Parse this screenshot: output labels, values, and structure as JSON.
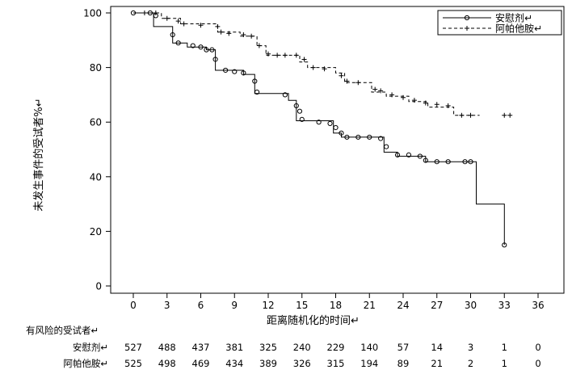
{
  "chart_data": {
    "type": "line",
    "xlabel": "距离随机化的时间↵",
    "ylabel": "未发生事件的受试者%↵",
    "xlim": [
      -2.4,
      39.2
    ],
    "ylim": [
      -0.5,
      100
    ],
    "x_ticks": [
      0,
      3,
      6,
      9,
      12,
      15,
      18,
      21,
      24,
      27,
      30,
      33,
      36
    ],
    "y_ticks": [
      0,
      20,
      40,
      60,
      80,
      100
    ],
    "grid": false,
    "legend_position": "top-right",
    "series": [
      {
        "name": "安慰剂↵",
        "line_style": "solid",
        "marker": "circle",
        "color": "#000000",
        "steps": [
          [
            0,
            100
          ],
          [
            1.8,
            100
          ],
          [
            1.8,
            95
          ],
          [
            3.5,
            95
          ],
          [
            3.5,
            89
          ],
          [
            4.8,
            89
          ],
          [
            4.8,
            87.5
          ],
          [
            6.5,
            87.5
          ],
          [
            6.5,
            86.5
          ],
          [
            7.3,
            86.5
          ],
          [
            7.3,
            79
          ],
          [
            9.8,
            79
          ],
          [
            9.8,
            77.5
          ],
          [
            10.8,
            77.5
          ],
          [
            10.8,
            70.5
          ],
          [
            13.8,
            70.5
          ],
          [
            13.8,
            68
          ],
          [
            14.5,
            68
          ],
          [
            14.5,
            60.5
          ],
          [
            17.8,
            60.5
          ],
          [
            17.8,
            56
          ],
          [
            18.5,
            56
          ],
          [
            18.5,
            54.5
          ],
          [
            22.3,
            54.5
          ],
          [
            22.3,
            49
          ],
          [
            23.5,
            49
          ],
          [
            23.5,
            47.5
          ],
          [
            26,
            47.5
          ],
          [
            26,
            45.5
          ],
          [
            30.5,
            45.5
          ],
          [
            30.5,
            30
          ],
          [
            33,
            30
          ],
          [
            33,
            15
          ]
        ],
        "censored": [
          [
            0,
            100
          ],
          [
            1.5,
            100
          ],
          [
            2,
            99
          ],
          [
            3.5,
            92
          ],
          [
            4,
            89
          ],
          [
            5.3,
            88
          ],
          [
            6,
            87.5
          ],
          [
            6.5,
            86.5
          ],
          [
            7,
            86.5
          ],
          [
            7.3,
            83
          ],
          [
            8.2,
            79
          ],
          [
            9,
            78.5
          ],
          [
            9.8,
            78
          ],
          [
            10.8,
            75
          ],
          [
            11,
            71
          ],
          [
            13.5,
            70
          ],
          [
            14.5,
            66
          ],
          [
            14.8,
            64
          ],
          [
            15,
            61
          ],
          [
            16.5,
            60
          ],
          [
            17.5,
            59.5
          ],
          [
            18,
            58
          ],
          [
            18.5,
            56
          ],
          [
            19,
            54.5
          ],
          [
            20,
            54.5
          ],
          [
            21,
            54.5
          ],
          [
            22,
            54
          ],
          [
            22.5,
            51
          ],
          [
            23.5,
            48
          ],
          [
            24.5,
            48
          ],
          [
            25.5,
            47.5
          ],
          [
            26,
            46
          ],
          [
            27,
            45.5
          ],
          [
            28,
            45.5
          ],
          [
            29.5,
            45.5
          ],
          [
            30,
            45.5
          ],
          [
            33,
            15
          ]
        ]
      },
      {
        "name": "阿帕他胺↵",
        "line_style": "dashed",
        "marker": "plus",
        "color": "#000000",
        "steps": [
          [
            0,
            100
          ],
          [
            2.5,
            100
          ],
          [
            2.5,
            98
          ],
          [
            4.2,
            98
          ],
          [
            4.2,
            96
          ],
          [
            7.5,
            96
          ],
          [
            7.5,
            93
          ],
          [
            9.5,
            93
          ],
          [
            9.5,
            91.5
          ],
          [
            11,
            91.5
          ],
          [
            11,
            88
          ],
          [
            11.8,
            88
          ],
          [
            11.8,
            84.5
          ],
          [
            14.8,
            84.5
          ],
          [
            14.8,
            82
          ],
          [
            15.5,
            82
          ],
          [
            15.5,
            80
          ],
          [
            18,
            80
          ],
          [
            18,
            78
          ],
          [
            18.8,
            78
          ],
          [
            18.8,
            74.5
          ],
          [
            21.2,
            74.5
          ],
          [
            21.2,
            71
          ],
          [
            22.5,
            71
          ],
          [
            22.5,
            69.5
          ],
          [
            24.5,
            69.5
          ],
          [
            24.5,
            67.5
          ],
          [
            26.2,
            67.5
          ],
          [
            26.2,
            65.5
          ],
          [
            28.5,
            65.5
          ],
          [
            28.5,
            62.5
          ],
          [
            30.8,
            62.5
          ]
        ],
        "censored": [
          [
            1,
            100
          ],
          [
            2,
            100
          ],
          [
            3,
            98
          ],
          [
            4,
            97
          ],
          [
            4.5,
            96
          ],
          [
            6,
            95.5
          ],
          [
            7.5,
            95
          ],
          [
            7.8,
            93
          ],
          [
            8.5,
            92.5
          ],
          [
            9.8,
            92
          ],
          [
            10.5,
            91.5
          ],
          [
            11.2,
            88
          ],
          [
            12,
            85
          ],
          [
            12.8,
            84.5
          ],
          [
            13.5,
            84.5
          ],
          [
            14.5,
            84.5
          ],
          [
            15.2,
            83
          ],
          [
            16,
            80
          ],
          [
            17,
            79.5
          ],
          [
            18.5,
            77
          ],
          [
            19,
            75
          ],
          [
            20,
            74.5
          ],
          [
            21.5,
            72
          ],
          [
            22,
            71.5
          ],
          [
            23,
            70
          ],
          [
            24,
            69
          ],
          [
            25,
            68
          ],
          [
            26,
            67
          ],
          [
            27,
            66.5
          ],
          [
            28,
            66
          ],
          [
            29.2,
            62.5
          ],
          [
            30,
            62.5
          ],
          [
            33,
            62.5
          ],
          [
            33.5,
            62.5
          ]
        ]
      }
    ]
  },
  "risk_table": {
    "title": "有风险的受试者↵",
    "times": [
      0,
      3,
      6,
      9,
      12,
      15,
      18,
      21,
      24,
      27,
      30,
      33,
      36
    ],
    "rows": [
      {
        "label": "安慰剂↵",
        "counts": [
          "527",
          "488",
          "437",
          "381",
          "325",
          "240",
          "229",
          "140",
          "57",
          "14",
          "3",
          "1",
          "0"
        ]
      },
      {
        "label": "阿帕他胺↵",
        "counts": [
          "525",
          "498",
          "469",
          "434",
          "389",
          "326",
          "315",
          "194",
          "89",
          "21",
          "2",
          "1",
          "0"
        ]
      }
    ]
  }
}
